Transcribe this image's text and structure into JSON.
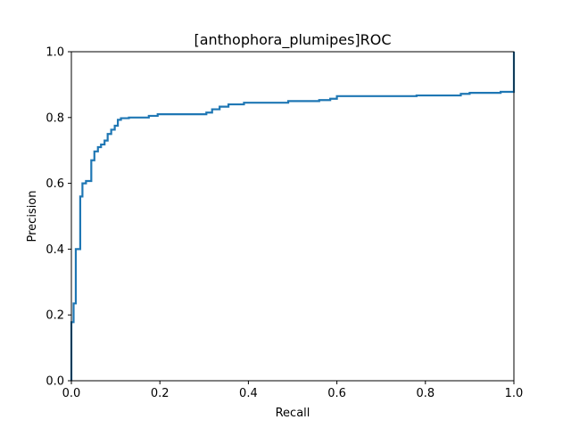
{
  "chart_data": {
    "type": "line",
    "title": "[anthophora_plumipes]ROC",
    "xlabel": "Recall",
    "ylabel": "Precision",
    "xlim": [
      0,
      1
    ],
    "ylim": [
      0,
      1
    ],
    "grid": false,
    "legend": "none",
    "line_style": "step",
    "color": "#1f77b4",
    "x_ticks": [
      "0.0",
      "0.2",
      "0.4",
      "0.6",
      "0.8",
      "1.0"
    ],
    "y_ticks": [
      "0.0",
      "0.2",
      "0.4",
      "0.6",
      "0.8",
      "1.0"
    ],
    "series": [
      {
        "x": [
          0.0,
          0.0,
          0.005,
          0.005,
          0.01,
          0.01,
          0.02,
          0.02,
          0.025,
          0.025,
          0.033,
          0.033,
          0.045,
          0.045,
          0.052,
          0.052,
          0.06,
          0.06,
          0.067,
          0.067,
          0.075,
          0.075,
          0.082,
          0.082,
          0.09,
          0.09,
          0.098,
          0.098,
          0.105,
          0.105,
          0.112,
          0.112,
          0.13,
          0.13,
          0.175,
          0.175,
          0.195,
          0.195,
          0.24,
          0.24,
          0.305,
          0.305,
          0.318,
          0.318,
          0.335,
          0.335,
          0.355,
          0.355,
          0.39,
          0.39,
          0.49,
          0.49,
          0.56,
          0.56,
          0.585,
          0.585,
          0.6,
          0.6,
          0.78,
          0.78,
          0.88,
          0.88,
          0.9,
          0.9,
          0.97,
          0.97,
          1.0,
          1.0
        ],
        "y": [
          0.0,
          0.178,
          0.178,
          0.235,
          0.235,
          0.4,
          0.4,
          0.56,
          0.56,
          0.6,
          0.6,
          0.607,
          0.607,
          0.67,
          0.67,
          0.697,
          0.697,
          0.71,
          0.71,
          0.718,
          0.718,
          0.73,
          0.73,
          0.75,
          0.75,
          0.763,
          0.763,
          0.775,
          0.775,
          0.793,
          0.793,
          0.798,
          0.798,
          0.8,
          0.8,
          0.805,
          0.805,
          0.81,
          0.81,
          0.81,
          0.81,
          0.815,
          0.815,
          0.825,
          0.825,
          0.833,
          0.833,
          0.84,
          0.84,
          0.845,
          0.845,
          0.85,
          0.85,
          0.853,
          0.853,
          0.857,
          0.857,
          0.865,
          0.865,
          0.867,
          0.867,
          0.872,
          0.872,
          0.875,
          0.875,
          0.878,
          0.878,
          1.0
        ]
      }
    ]
  }
}
